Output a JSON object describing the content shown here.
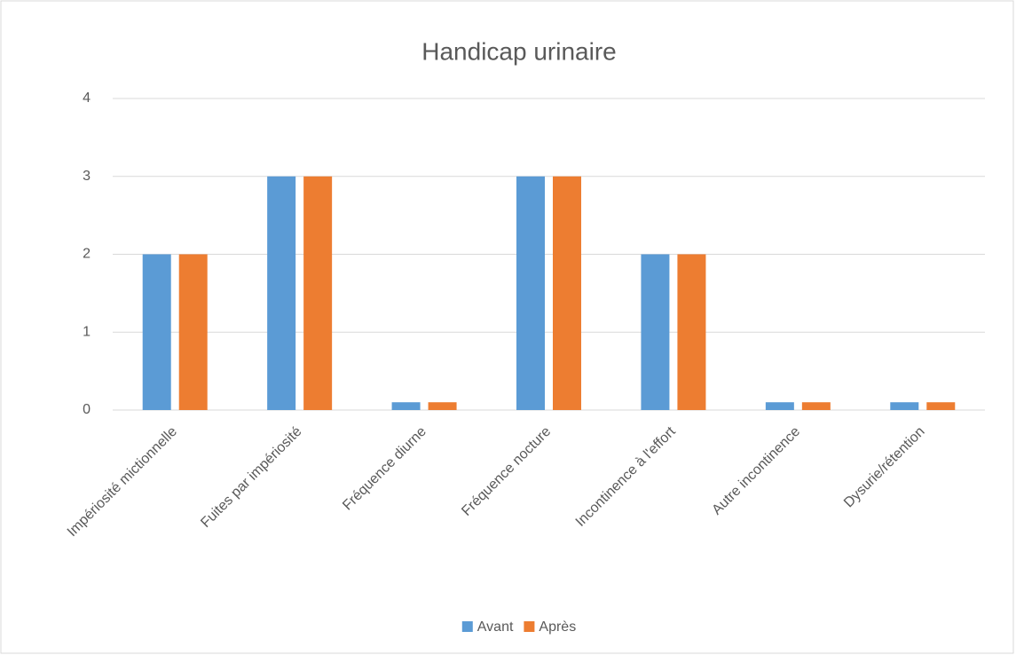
{
  "chart_data": {
    "type": "bar",
    "title": "Handicap urinaire",
    "categories": [
      "Impériosité mictionnelle",
      "Fuites par impériosité",
      "Fréquence diurne",
      "Fréquence nocture",
      "Incontinence à l'effort",
      "Autre incontinence",
      "Dysurie/rétention"
    ],
    "series": [
      {
        "name": "Avant",
        "color": "#5b9bd5",
        "values": [
          2,
          3,
          0.1,
          3,
          2,
          0.1,
          0.1
        ]
      },
      {
        "name": "Après",
        "color": "#ed7d31",
        "values": [
          2,
          3,
          0.1,
          3,
          2,
          0.1,
          0.1
        ]
      }
    ],
    "ylim": [
      0,
      4
    ],
    "yticks": [
      0,
      1,
      2,
      3,
      4
    ],
    "grid": true,
    "legend": "bottom"
  }
}
